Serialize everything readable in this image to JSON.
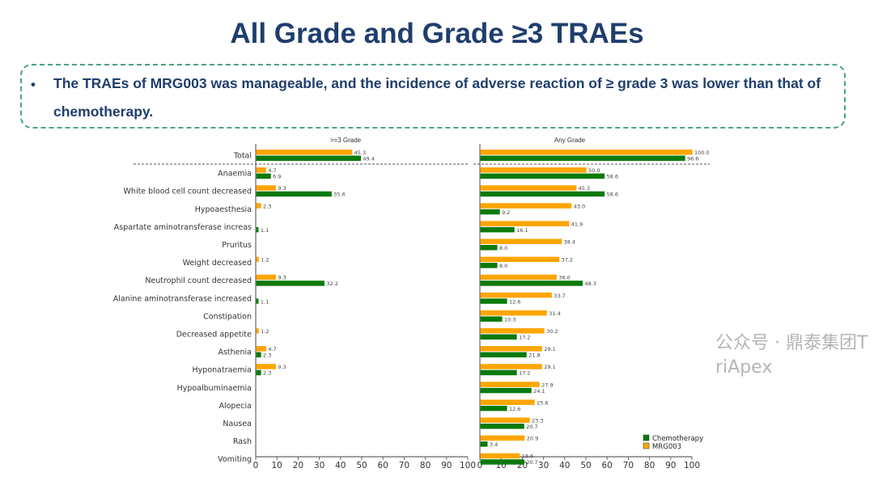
{
  "title": "All Grade and Grade ≥3 TRAEs",
  "bullet": "The TRAEs of MRG003 was manageable, and the incidence of adverse reaction of ≥ grade 3 was lower than that of chemotherapy.",
  "watermark": "公众号 · 鼎泰集团TriApex",
  "chart_data": [
    {
      "type": "bar",
      "orientation": "horizontal",
      "title": ">=3 Grade",
      "categories": [
        "Total",
        "Anaemia",
        "White blood cell count decreased",
        "Hypoaesthesia",
        "Aspartate aminotransferase increas",
        "Pruritus",
        "Weight decreased",
        "Neutrophil count decreased",
        "Alanine aminotransferase increased",
        "Constipation",
        "Decreased appetite",
        "Asthenia",
        "Hyponatraemia",
        "Hypoalbuminaemia",
        "Alopecia",
        "Nausea",
        "Rash",
        "Vomiting"
      ],
      "series": [
        {
          "name": "MRG003",
          "color": "#ffa500",
          "values": [
            45.3,
            4.7,
            9.3,
            2.3,
            null,
            null,
            1.2,
            9.3,
            null,
            null,
            1.2,
            4.7,
            9.3,
            null,
            null,
            null,
            null,
            null
          ]
        },
        {
          "name": "Chemotherapy",
          "color": "#0a7a0a",
          "values": [
            49.4,
            6.9,
            35.6,
            null,
            1.1,
            null,
            null,
            32.2,
            1.1,
            null,
            null,
            2.3,
            2.3,
            null,
            null,
            null,
            null,
            null
          ]
        }
      ],
      "xlim": [
        0,
        100
      ],
      "xticks": [
        "0",
        "10",
        "20",
        "30",
        "40",
        "50",
        "60",
        "70",
        "80",
        "90",
        "100"
      ]
    },
    {
      "type": "bar",
      "orientation": "horizontal",
      "title": "Any Grade",
      "categories": [
        "Total",
        "Anaemia",
        "White blood cell count decreased",
        "Hypoaesthesia",
        "Aspartate aminotransferase increas",
        "Pruritus",
        "Weight decreased",
        "Neutrophil count decreased",
        "Alanine aminotransferase increased",
        "Constipation",
        "Decreased appetite",
        "Asthenia",
        "Hyponatraemia",
        "Hypoalbuminaemia",
        "Alopecia",
        "Nausea",
        "Rash",
        "Vomiting"
      ],
      "series": [
        {
          "name": "MRG003",
          "color": "#ffa500",
          "values": [
            100.0,
            50.0,
            45.3,
            43.0,
            41.9,
            38.4,
            37.2,
            36.0,
            33.7,
            31.4,
            30.2,
            29.1,
            29.1,
            27.9,
            25.6,
            23.3,
            20.9,
            18.6
          ]
        },
        {
          "name": "Chemotherapy",
          "color": "#0a7a0a",
          "values": [
            96.6,
            58.6,
            58.6,
            9.2,
            16.1,
            8.0,
            8.0,
            48.3,
            12.6,
            10.3,
            17.2,
            21.8,
            17.2,
            24.1,
            12.6,
            20.7,
            3.4,
            20.7
          ]
        }
      ],
      "xlim": [
        0,
        100
      ],
      "xticks": [
        "0",
        "10",
        "20",
        "30",
        "40",
        "50",
        "60",
        "70",
        "80",
        "90",
        "100"
      ],
      "legend": {
        "position": "bottom-right",
        "entries": [
          "Chemotherapy",
          "MRG003"
        ]
      }
    }
  ]
}
